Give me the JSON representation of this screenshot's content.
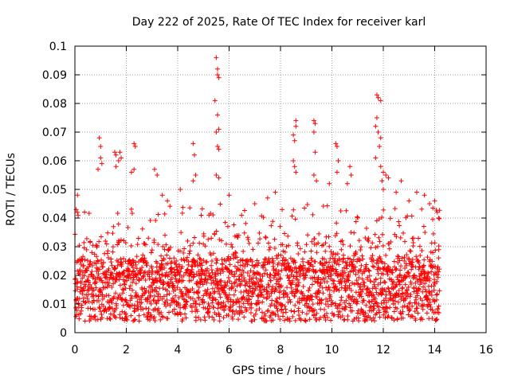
{
  "chart_data": {
    "type": "scatter",
    "title": "Day 222 of 2025, Rate Of TEC Index for receiver karl",
    "xlabel": "GPS time / hours",
    "ylabel": "ROTI / TECUs",
    "xlim": [
      0,
      16
    ],
    "ylim": [
      0,
      0.1
    ],
    "x_ticks": [
      0,
      2,
      4,
      6,
      8,
      10,
      12,
      14,
      16
    ],
    "x_tick_labels": [
      "0",
      "2",
      "4",
      "6",
      "8",
      "10",
      "12",
      "14",
      "16"
    ],
    "y_ticks": [
      0,
      0.01,
      0.02,
      0.03,
      0.04,
      0.05,
      0.06,
      0.07,
      0.08,
      0.09,
      0.1
    ],
    "y_tick_labels": [
      "0",
      "0.01",
      "0.02",
      "0.03",
      "0.04",
      "0.05",
      "0.06",
      "0.07",
      "0.08",
      "0.09",
      "0.1"
    ],
    "grid": true,
    "marker": "plus",
    "marker_color": "#ff0000",
    "x_data_range": [
      0,
      14.2
    ],
    "series": [
      {
        "name": "ROTI",
        "color": "#ff0000",
        "points": [
          [
            0.05,
            0.043
          ],
          [
            0.1,
            0.042
          ],
          [
            0.1,
            0.048
          ],
          [
            0.95,
            0.068
          ],
          [
            1.0,
            0.065
          ],
          [
            1.0,
            0.061
          ],
          [
            0.9,
            0.057
          ],
          [
            1.05,
            0.059
          ],
          [
            1.55,
            0.063
          ],
          [
            1.6,
            0.062
          ],
          [
            1.7,
            0.06
          ],
          [
            1.75,
            0.063
          ],
          [
            1.8,
            0.061
          ],
          [
            1.6,
            0.058
          ],
          [
            2.3,
            0.066
          ],
          [
            2.35,
            0.065
          ],
          [
            2.3,
            0.057
          ],
          [
            2.2,
            0.056
          ],
          [
            3.1,
            0.057
          ],
          [
            3.2,
            0.055
          ],
          [
            3.4,
            0.048
          ],
          [
            3.6,
            0.046
          ],
          [
            4.1,
            0.05
          ],
          [
            4.6,
            0.066
          ],
          [
            4.65,
            0.062
          ],
          [
            4.7,
            0.055
          ],
          [
            4.6,
            0.053
          ],
          [
            5.5,
            0.096
          ],
          [
            5.55,
            0.092
          ],
          [
            5.55,
            0.09
          ],
          [
            5.6,
            0.089
          ],
          [
            5.45,
            0.081
          ],
          [
            5.55,
            0.076
          ],
          [
            5.6,
            0.071
          ],
          [
            5.5,
            0.07
          ],
          [
            5.55,
            0.065
          ],
          [
            5.6,
            0.064
          ],
          [
            5.5,
            0.055
          ],
          [
            5.6,
            0.054
          ],
          [
            6.0,
            0.048
          ],
          [
            7.0,
            0.045
          ],
          [
            7.5,
            0.047
          ],
          [
            7.8,
            0.049
          ],
          [
            8.5,
            0.069
          ],
          [
            8.55,
            0.067
          ],
          [
            8.6,
            0.074
          ],
          [
            8.6,
            0.072
          ],
          [
            8.5,
            0.06
          ],
          [
            8.55,
            0.058
          ],
          [
            8.6,
            0.056
          ],
          [
            9.3,
            0.074
          ],
          [
            9.35,
            0.073
          ],
          [
            9.3,
            0.07
          ],
          [
            9.35,
            0.063
          ],
          [
            9.3,
            0.055
          ],
          [
            9.4,
            0.053
          ],
          [
            9.9,
            0.052
          ],
          [
            10.15,
            0.066
          ],
          [
            10.2,
            0.065
          ],
          [
            10.25,
            0.06
          ],
          [
            10.2,
            0.056
          ],
          [
            10.7,
            0.058
          ],
          [
            10.75,
            0.055
          ],
          [
            10.6,
            0.052
          ],
          [
            11.75,
            0.083
          ],
          [
            11.8,
            0.082
          ],
          [
            11.9,
            0.081
          ],
          [
            11.75,
            0.075
          ],
          [
            11.7,
            0.072
          ],
          [
            11.8,
            0.07
          ],
          [
            11.9,
            0.068
          ],
          [
            11.85,
            0.065
          ],
          [
            11.7,
            0.061
          ],
          [
            11.9,
            0.058
          ],
          [
            12.0,
            0.056
          ],
          [
            12.1,
            0.055
          ],
          [
            12.2,
            0.054
          ],
          [
            11.95,
            0.053
          ],
          [
            12.0,
            0.05
          ],
          [
            12.5,
            0.049
          ],
          [
            12.7,
            0.053
          ],
          [
            13.0,
            0.046
          ],
          [
            13.3,
            0.049
          ],
          [
            13.6,
            0.048
          ],
          [
            13.8,
            0.045
          ],
          [
            14.0,
            0.046
          ],
          [
            14.1,
            0.042
          ],
          [
            14.15,
            0.04
          ]
        ]
      }
    ]
  }
}
